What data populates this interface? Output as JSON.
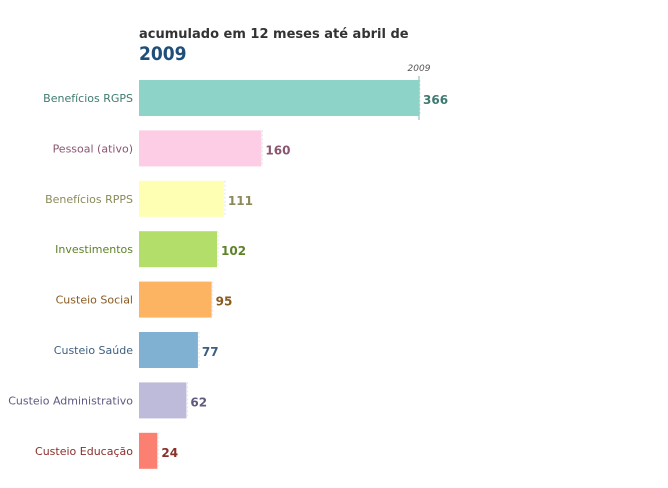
{
  "chart_data": {
    "type": "bar",
    "orientation": "horizontal",
    "subtitle": "acumulado em 12 meses até abril de",
    "year": "2009",
    "reference_label": "2009",
    "categories": [
      "Benefícios RGPS",
      "Pessoal (ativo)",
      "Benefícios RPPS",
      "Investimentos",
      "Custeio Social",
      "Custeio Saúde",
      "Custeio Administrativo",
      "Custeio Educação"
    ],
    "values": [
      366,
      160,
      111,
      102,
      95,
      77,
      62,
      24
    ],
    "colors": [
      "#8dd3c7",
      "#fccde5",
      "#ffffb3",
      "#b3de69",
      "#fdb462",
      "#80b1d3",
      "#bebada",
      "#fb8072"
    ],
    "label_colors": [
      "#3e7a70",
      "#8a5570",
      "#8a8a5a",
      "#5d8228",
      "#8a5a20",
      "#3d5f80",
      "#5f5a80",
      "#8a2f2a"
    ],
    "xlim": [
      0,
      366
    ]
  }
}
